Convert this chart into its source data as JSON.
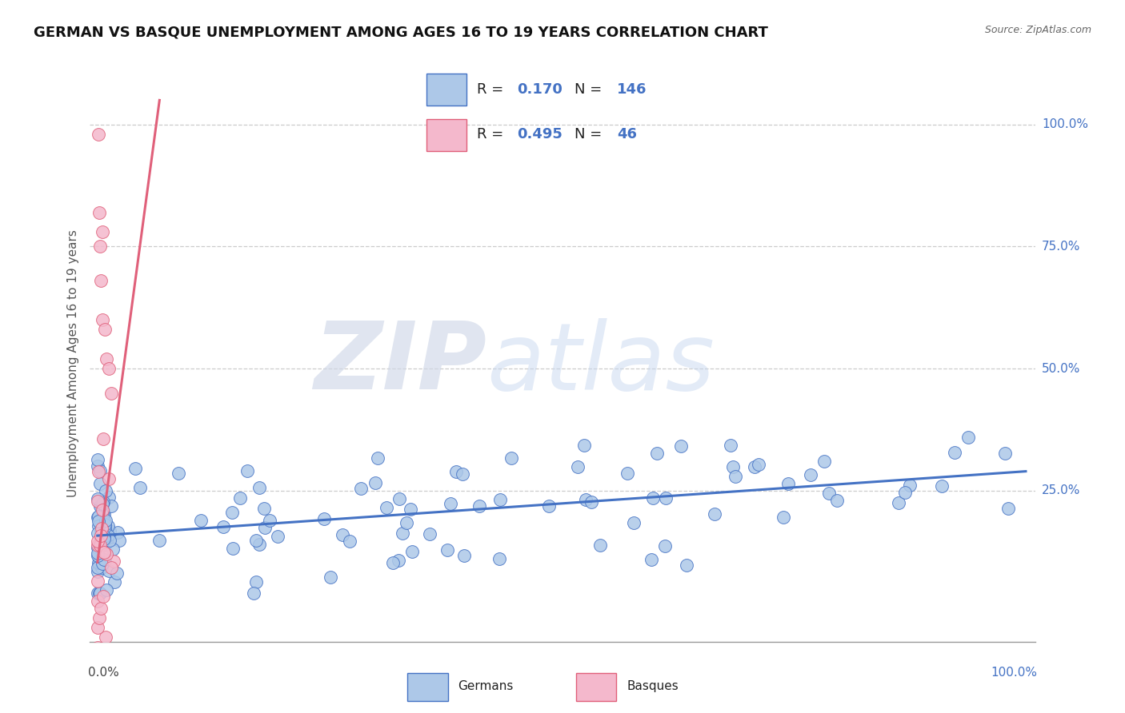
{
  "title": "GERMAN VS BASQUE UNEMPLOYMENT AMONG AGES 16 TO 19 YEARS CORRELATION CHART",
  "source": "Source: ZipAtlas.com",
  "ylabel": "Unemployment Among Ages 16 to 19 years",
  "watermark_zip": "ZIP",
  "watermark_atlas": "atlas",
  "ytick_labels": [
    "25.0%",
    "50.0%",
    "75.0%",
    "100.0%"
  ],
  "ytick_values": [
    0.25,
    0.5,
    0.75,
    1.0
  ],
  "german_fill": "#adc8e8",
  "german_edge": "#4472c4",
  "basque_fill": "#f4b8cc",
  "basque_edge": "#e0607a",
  "german_line": "#4472c4",
  "basque_line": "#e0607a",
  "stat_color": "#4472c4",
  "bg": "#ffffff",
  "legend_r1": "0.170",
  "legend_n1": "146",
  "legend_r2": "0.495",
  "legend_n2": "46"
}
